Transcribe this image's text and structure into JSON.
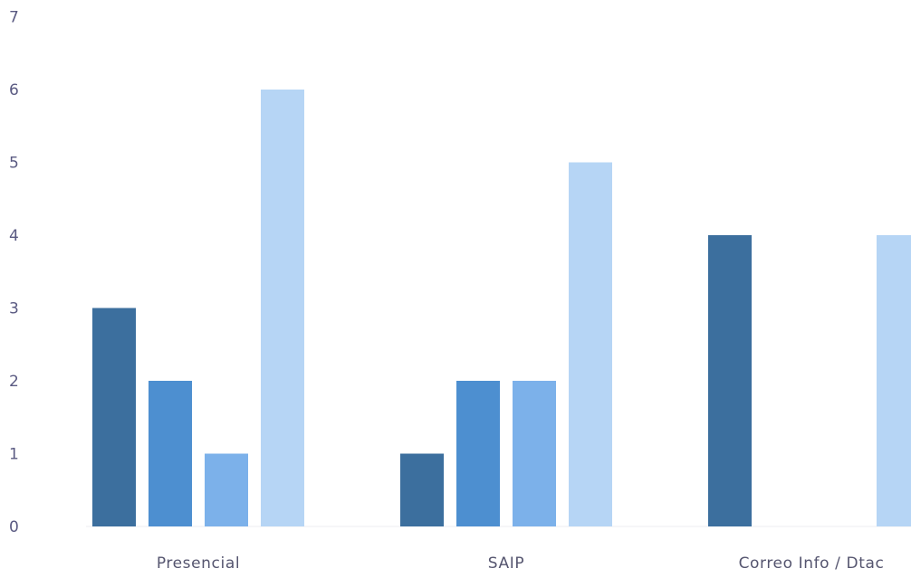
{
  "chart_data": {
    "type": "bar",
    "categories": [
      "Presencial",
      "SAIP",
      "Correo Info / Dtac"
    ],
    "series": [
      {
        "values": [
          3,
          1,
          4
        ],
        "color": "#3c6f9e"
      },
      {
        "values": [
          2,
          2,
          0
        ],
        "color": "#4d8fd0"
      },
      {
        "values": [
          1,
          2,
          0
        ],
        "color": "#7cb1ea"
      },
      {
        "values": [
          6,
          5,
          4
        ],
        "color": "#b6d5f5"
      }
    ],
    "yticks": [
      "0",
      "1",
      "2",
      "3",
      "4",
      "5",
      "6",
      "7"
    ],
    "ylim": [
      0,
      7
    ],
    "grid": false,
    "legend": "none"
  }
}
